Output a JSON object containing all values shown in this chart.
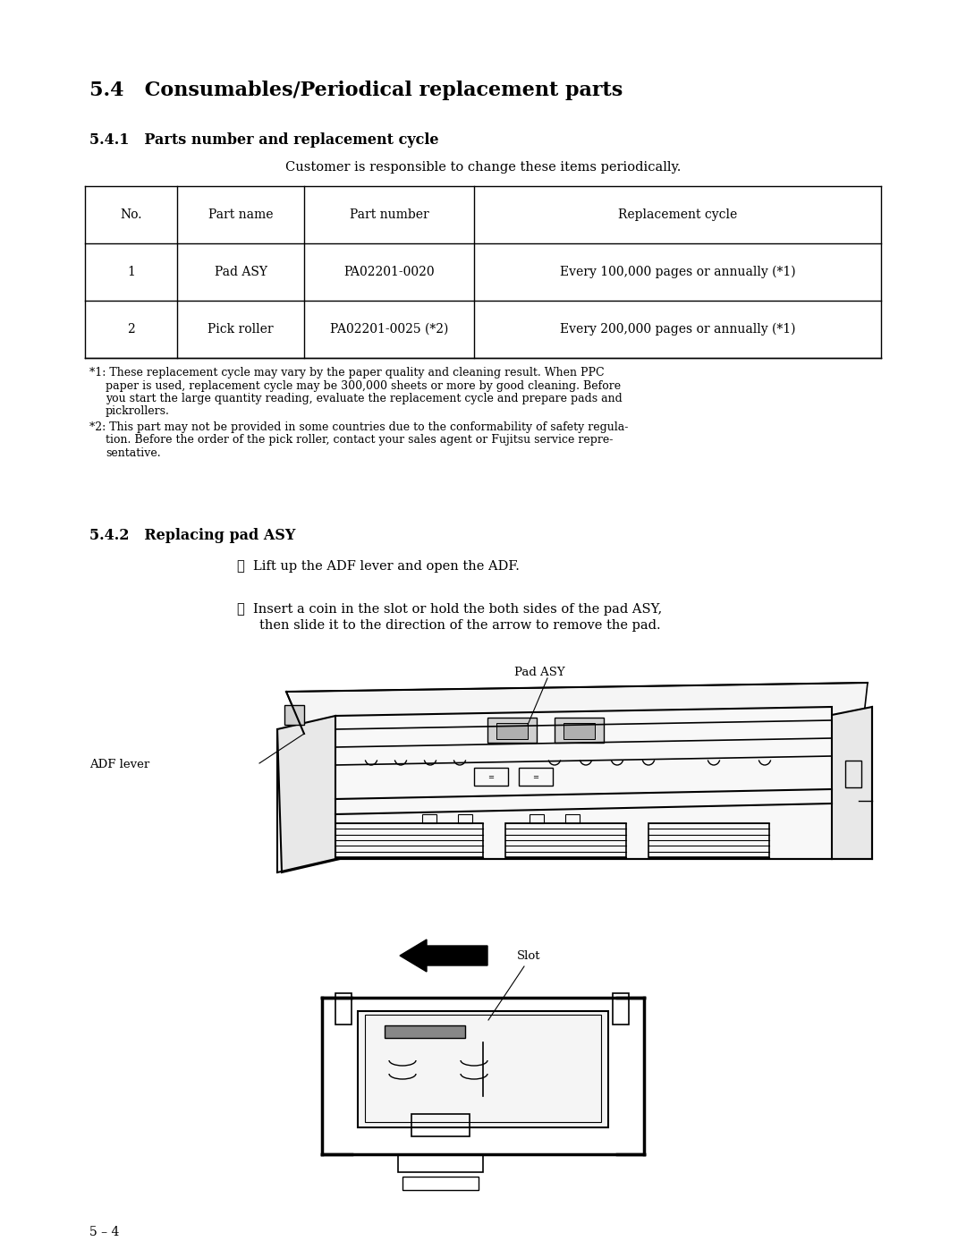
{
  "bg_color": "#ffffff",
  "text_color": "#000000",
  "page_width": 10.8,
  "page_height": 13.97,
  "section_title": "5.4   Consumables/Periodical replacement parts",
  "subsection1_title": "5.4.1   Parts number and replacement cycle",
  "subtitle_center": "Customer is responsible to change these items periodically.",
  "table_headers": [
    "No.",
    "Part name",
    "Part number",
    "Replacement cycle"
  ],
  "table_rows": [
    [
      "1",
      "Pad ASY",
      "PA02201-0020",
      "Every 100,000 pages or annually (*1)"
    ],
    [
      "2",
      "Pick roller",
      "PA02201-0025 (*2)",
      "Every 200,000 pages or annually (*1)"
    ]
  ],
  "footnote1_lines": [
    "*1: These replacement cycle may vary by the paper quality and cleaning result. When PPC",
    "paper is used, replacement cycle may be 300,000 sheets or more by good cleaning. Before",
    "you start the large quantity reading, evaluate the replacement cycle and prepare pads and",
    "pickrollers."
  ],
  "footnote2_lines": [
    "*2: This part may not be provided in some countries due to the conformability of safety regula-",
    "tion. Before the order of the pick roller, contact your sales agent or Fujitsu service repre-",
    "sentative."
  ],
  "subsection2_title": "5.4.2   Replacing pad ASY",
  "step1": "①  Lift up the ADF lever and open the ADF.",
  "step2_line1": "②  Insert a coin in the slot or hold the both sides of the pad ASY,",
  "step2_line2": "then slide it to the direction of the arrow to remove the pad.",
  "label_pad_asy": "Pad ASY",
  "label_adf_lever": "ADF lever",
  "label_slot": "Slot",
  "page_footer": "5 – 4"
}
